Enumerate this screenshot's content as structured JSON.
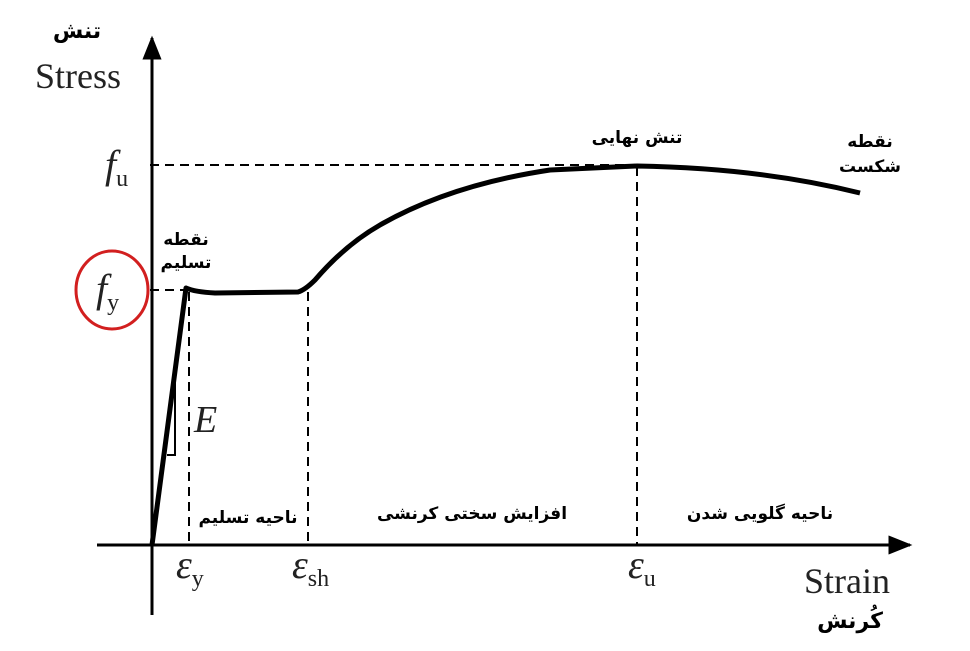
{
  "axes": {
    "y_title_fa": "تنش",
    "y_title": "Stress",
    "x_title": "Strain",
    "x_title_fa": "کُرنش"
  },
  "y_symbols": [
    {
      "main": "f",
      "sub": "u"
    },
    {
      "main": "f",
      "sub": "y"
    }
  ],
  "x_symbols": [
    {
      "main": "ε",
      "sub": "y"
    },
    {
      "main": "ε",
      "sub": "sh"
    },
    {
      "main": "ε",
      "sub": "u"
    }
  ],
  "modulus": "E",
  "points": {
    "yield": [
      "نقطه",
      "تسلیم"
    ],
    "ultimate": "تنش نهایی",
    "fracture": [
      "نقطه",
      "شکست"
    ]
  },
  "regions": [
    "ناحیه تسلیم",
    "افزایش سختی کرنشی",
    "ناحیه گلویی شدن"
  ]
}
